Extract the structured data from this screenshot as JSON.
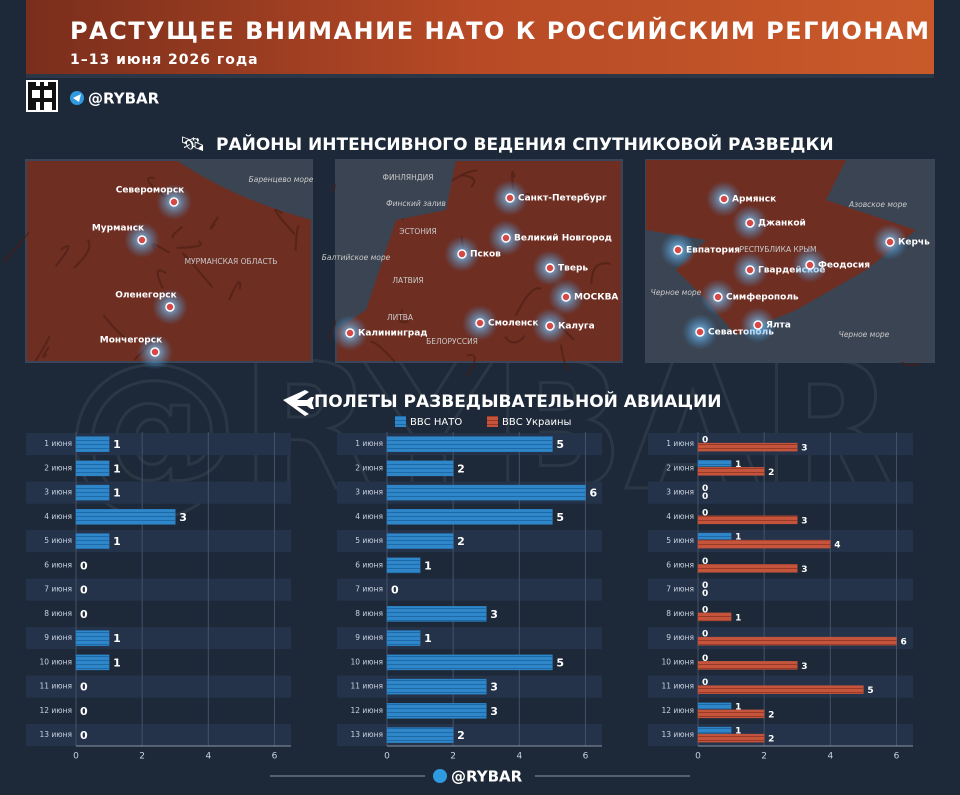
{
  "header": {
    "title": "РАСТУЩЕЕ ВНИМАНИЕ НАТО К РОССИЙСКИМ РЕГИОНАМ",
    "subtitle": "1–13 июня 2026 года",
    "brand": "@RYBAR"
  },
  "sections": {
    "satellite": "РАЙОНЫ ИНТЕНСИВНОГО ВЕДЕНИЯ СПУТНИКОВОЙ РАЗВЕДКИ",
    "aviation": "ПОЛЕТЫ РАЗВЕДЫВАТЕЛЬНОЙ АВИАЦИИ"
  },
  "maps": [
    {
      "labels": [
        "Баренцево море",
        "Североморск",
        "Мурманск",
        "МУРМАНСКАЯ ОБЛАСТЬ",
        "Оленегорск",
        "Мончегорск"
      ]
    },
    {
      "labels": [
        "ФИНЛЯНДИЯ",
        "Финский залив",
        "Санкт-Петербург",
        "ЭСТОНИЯ",
        "Великий Новгород",
        "Балтийское море",
        "Псков",
        "Тверь",
        "ЛАТВИЯ",
        "МОСКВА",
        "ЛИТВА",
        "Смоленск",
        "Калуга",
        "Калининград",
        "БЕЛОРУССИЯ"
      ]
    },
    {
      "labels": [
        "Армянск",
        "Джанкой",
        "Азовское море",
        "Евпатория",
        "РЕСПУБЛИКА КРЫМ",
        "Керчь",
        "Гвардейское",
        "Феодосия",
        "Черное море",
        "Симферополь",
        "Севастополь",
        "Ялта",
        "Черное море"
      ]
    }
  ],
  "chart_data": [
    {
      "type": "barh",
      "categories": [
        "1 июня",
        "2 июня",
        "3 июня",
        "4 июня",
        "5 июня",
        "6 июня",
        "7 июня",
        "8 июня",
        "9 июня",
        "10 июня",
        "11 июня",
        "12 июня",
        "13 июня"
      ],
      "series": [
        {
          "color": "#2f87c9",
          "values": [
            1,
            1,
            1,
            3,
            1,
            0,
            0,
            0,
            1,
            1,
            0,
            0,
            0
          ]
        }
      ],
      "xlim": [
        0,
        6.5
      ],
      "xticks": [
        0,
        2,
        4,
        6
      ],
      "grid": true
    },
    {
      "type": "barh",
      "categories": [
        "1 июня",
        "2 июня",
        "3 июня",
        "4 июня",
        "5 июня",
        "6 июня",
        "7 июня",
        "8 июня",
        "9 июня",
        "10 июня",
        "11 июня",
        "12 июня",
        "13 июня"
      ],
      "series": [
        {
          "color": "#2f87c9",
          "values": [
            5,
            2,
            6,
            5,
            2,
            1,
            0,
            3,
            1,
            5,
            3,
            3,
            2
          ]
        }
      ],
      "xlim": [
        0,
        6.5
      ],
      "xticks": [
        0,
        2,
        4,
        6
      ],
      "grid": true
    },
    {
      "type": "barh",
      "categories": [
        "1 июня",
        "2 июня",
        "3 июня",
        "4 июня",
        "5 июня",
        "6 июня",
        "7 июня",
        "8 июня",
        "9 июня",
        "10 июня",
        "11 июня",
        "12 июня",
        "13 июня"
      ],
      "series": [
        {
          "name": "ВВС НАТО",
          "color": "#2f87c9",
          "values": [
            0,
            1,
            0,
            0,
            1,
            0,
            0,
            0,
            0,
            0,
            0,
            1,
            1
          ]
        },
        {
          "name": "ВВС Украины",
          "color": "#c4553c",
          "values": [
            3,
            2,
            0,
            3,
            4,
            3,
            0,
            1,
            6,
            3,
            5,
            2,
            2
          ]
        }
      ],
      "xlim": [
        0,
        6.5
      ],
      "xticks": [
        0,
        2,
        4,
        6
      ],
      "grid": true
    }
  ]
}
